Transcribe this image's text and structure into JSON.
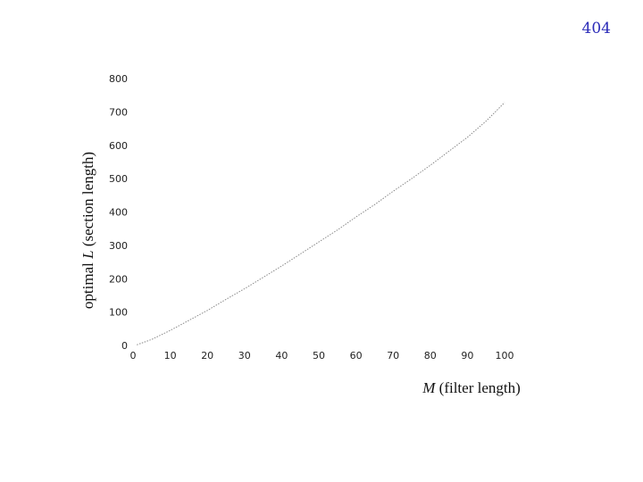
{
  "page": {
    "number": "404"
  },
  "colors": {
    "page_number": "#2b2bb8",
    "curve": "#888888",
    "text": "#222222"
  },
  "chart_data": {
    "type": "line",
    "title": "",
    "xlabel_var": "M",
    "xlabel_text": " (filter length)",
    "ylabel_prefix": "optimal ",
    "ylabel_var": "L",
    "ylabel_text": " (section length)",
    "xlim": [
      0,
      100
    ],
    "ylim": [
      0,
      800
    ],
    "xticks": [
      0,
      10,
      20,
      30,
      40,
      50,
      60,
      70,
      80,
      90,
      100
    ],
    "yticks": [
      0,
      100,
      200,
      300,
      400,
      500,
      600,
      700,
      800
    ],
    "grid": false,
    "legend": "none",
    "series": [
      {
        "x": [
          1,
          5,
          10,
          15,
          20,
          25,
          30,
          35,
          40,
          45,
          50,
          55,
          60,
          65,
          70,
          75,
          80,
          85,
          90,
          95,
          100
        ],
        "y": [
          2,
          18,
          45,
          75,
          105,
          138,
          170,
          204,
          238,
          274,
          310,
          346,
          385,
          422,
          462,
          500,
          540,
          582,
          624,
          672,
          728
        ]
      }
    ]
  }
}
